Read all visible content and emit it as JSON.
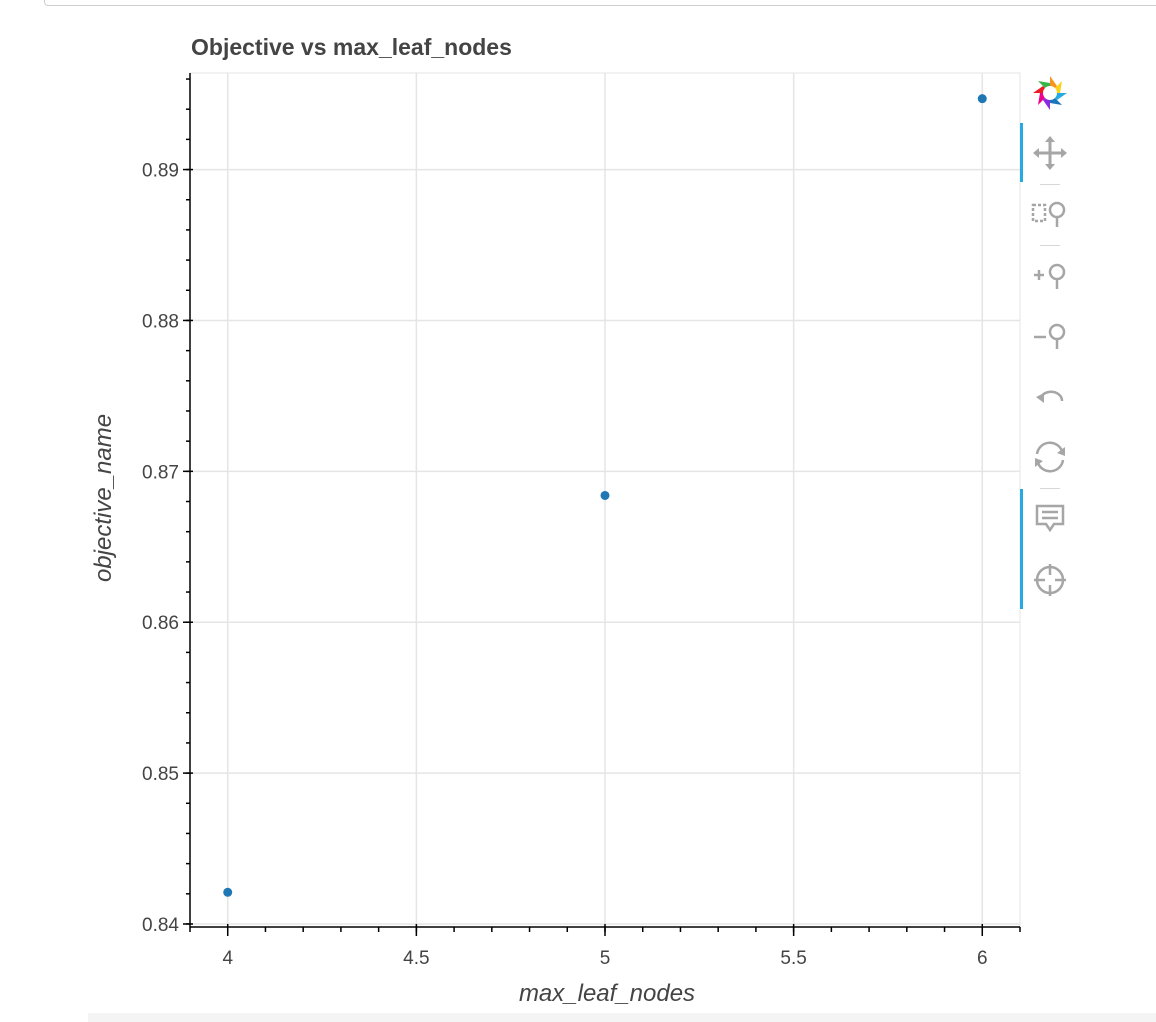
{
  "chart_data": {
    "type": "scatter",
    "title": "Objective vs max_leaf_nodes",
    "xlabel": "max_leaf_nodes",
    "ylabel": "objective_name",
    "x": [
      4,
      5,
      6
    ],
    "y": [
      0.8421,
      0.8684,
      0.8947
    ],
    "xlim": [
      3.9,
      6.1
    ],
    "ylim": [
      0.8398,
      0.8964
    ],
    "x_ticks": [
      4,
      4.5,
      5,
      5.5,
      6
    ],
    "x_tick_labels": [
      "4",
      "4.5",
      "5",
      "5.5",
      "6"
    ],
    "y_ticks": [
      0.84,
      0.85,
      0.86,
      0.87,
      0.88,
      0.89
    ],
    "y_tick_labels": [
      "0.84",
      "0.85",
      "0.86",
      "0.87",
      "0.88",
      "0.89"
    ],
    "grid": true,
    "point_color": "#1f77b4",
    "axis_color": "#000000",
    "grid_color": "#e5e5e5"
  },
  "toolbar": {
    "tools": [
      {
        "name": "bokeh-logo-icon",
        "active": false
      },
      {
        "name": "pan-icon",
        "active": true
      },
      {
        "name": "box-zoom-icon",
        "active": false
      },
      {
        "name": "zoom-in-icon",
        "active": false
      },
      {
        "name": "zoom-out-icon",
        "active": false
      },
      {
        "name": "undo-icon",
        "active": false
      },
      {
        "name": "reset-icon",
        "active": false
      },
      {
        "name": "hover-icon",
        "active": true
      },
      {
        "name": "crosshair-icon",
        "active": false
      }
    ],
    "active_color": "#26aae1",
    "icon_color": "#a6a6a6"
  }
}
